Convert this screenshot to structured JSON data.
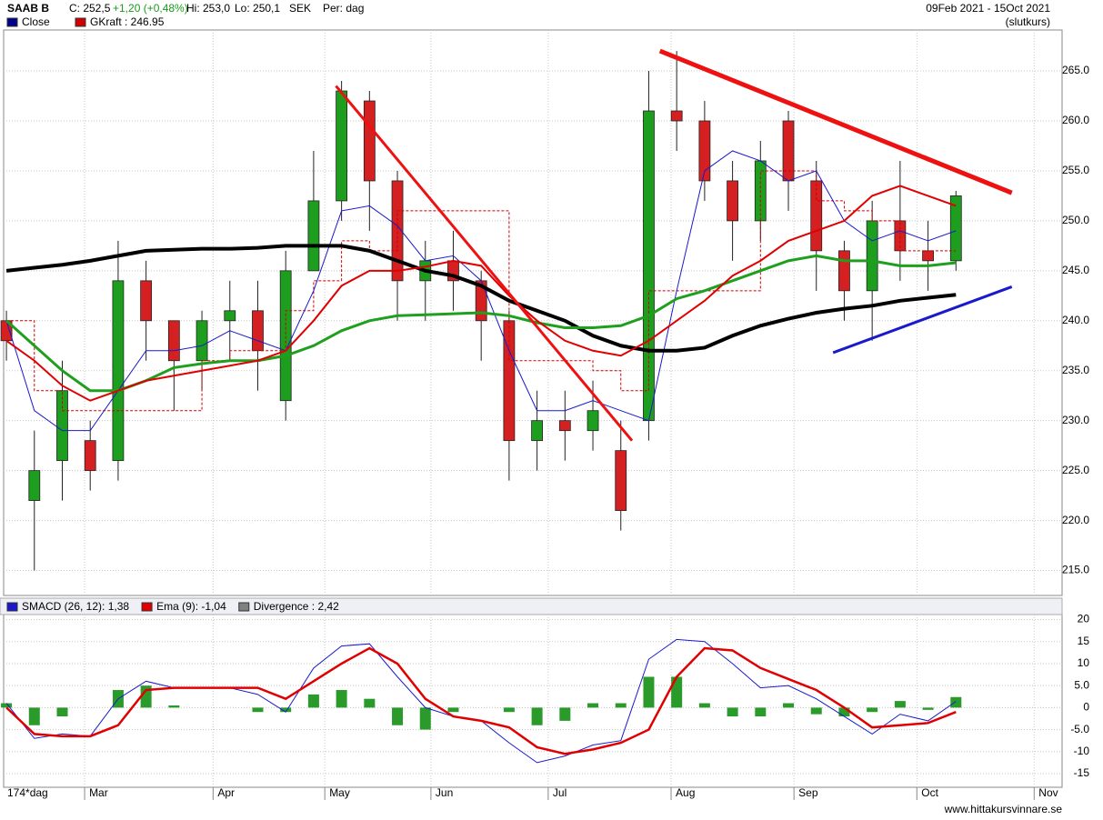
{
  "header": {
    "ticker": "SAAB B",
    "close": "C: 252,5",
    "change": "+1,20 (+0,48%)",
    "high": "Hi: 253,0",
    "low": "Lo: 250,1",
    "currency": "SEK",
    "period": "Per: dag",
    "range": "09Feb 2021 - 15Oct 2021",
    "mode": "(slutkurs)",
    "legend": [
      {
        "label": "Close",
        "color": "#00008b"
      },
      {
        "label": "GKraft : 246.95",
        "color": "#d00000"
      }
    ],
    "days": "174*dag",
    "footer": "www.hittakursvinnare.se"
  },
  "chart_data": [
    {
      "type": "candlestick",
      "x": [
        0,
        5,
        10,
        15,
        20,
        25,
        30,
        35,
        40,
        45,
        50,
        55,
        60,
        65,
        70,
        75,
        80,
        85,
        90,
        95,
        100,
        105,
        110,
        115,
        120,
        125,
        130,
        135,
        140,
        145,
        150,
        155,
        160,
        165,
        170
      ],
      "open": [
        240,
        222,
        226,
        228,
        226,
        244,
        240,
        236,
        240,
        241,
        232,
        245,
        252,
        262,
        254,
        244,
        246,
        244,
        240,
        228,
        230,
        229,
        227,
        230,
        261,
        260,
        254,
        250,
        260,
        254,
        247,
        243,
        250,
        247,
        246
      ],
      "high": [
        241,
        229,
        236,
        230,
        248,
        246,
        240,
        241,
        244,
        244,
        247,
        257,
        264,
        263,
        255,
        248,
        249,
        245,
        241,
        233,
        233,
        234,
        230,
        265,
        267,
        262,
        256,
        258,
        261,
        256,
        248,
        252,
        256,
        250,
        253
      ],
      "low": [
        236,
        215,
        222,
        223,
        224,
        236,
        231,
        233,
        236,
        233,
        230,
        245,
        250,
        249,
        240,
        240,
        241,
        236,
        224,
        225,
        226,
        227,
        219,
        228,
        257,
        252,
        246,
        248,
        251,
        243,
        240,
        238,
        244,
        243,
        245
      ],
      "close": [
        238,
        225,
        233,
        225,
        244,
        240,
        236,
        240,
        241,
        237,
        245,
        252,
        263,
        254,
        244,
        246,
        244,
        240,
        228,
        230,
        229,
        231,
        221,
        261,
        260,
        254,
        250,
        256,
        254,
        247,
        243,
        250,
        247,
        246,
        252.5
      ],
      "up_color": "#1e9e1e",
      "down_color": "#d42020",
      "series": [
        {
          "color": "#d00000",
          "width": 1,
          "dash": true,
          "step": true,
          "values": [
            240,
            233,
            231,
            231,
            231,
            231,
            231,
            236,
            237,
            237,
            241,
            244,
            248,
            247,
            251,
            251,
            251,
            251,
            236,
            236,
            236,
            235,
            233,
            243,
            243,
            243,
            243,
            255,
            255,
            252,
            251,
            250,
            247,
            247,
            247
          ]
        },
        {
          "color": "#1a1acc",
          "width": 1,
          "values": [
            240,
            231,
            229,
            229,
            233,
            237,
            237,
            237.5,
            239,
            238,
            237,
            243,
            251,
            251.5,
            249.5,
            246,
            246.5,
            244,
            237,
            231,
            231,
            232,
            231,
            230,
            243,
            255,
            257,
            256,
            254,
            255,
            250,
            248,
            249,
            248,
            249
          ]
        },
        {
          "color": "#000000",
          "width": 4,
          "values": [
            245,
            245.3,
            245.6,
            246,
            246.5,
            247,
            247.1,
            247.2,
            247.2,
            247.3,
            247.5,
            247.5,
            247.5,
            247,
            246,
            245,
            244.5,
            243.5,
            242,
            241,
            240,
            238.5,
            237.5,
            237,
            237,
            237.3,
            238.5,
            239.5,
            240.2,
            240.8,
            241.2,
            241.5,
            242,
            242.3,
            242.6
          ]
        },
        {
          "color": "#1ea01e",
          "width": 3,
          "values": [
            240,
            237.5,
            235,
            233,
            233,
            234,
            235.3,
            235.7,
            236,
            236,
            236.5,
            237.5,
            239,
            240,
            240.5,
            240.6,
            240.7,
            240.8,
            240.5,
            239.8,
            239.3,
            239.3,
            239.5,
            240.5,
            242.2,
            243,
            244,
            245,
            246,
            246.5,
            246,
            246,
            245.5,
            245.5,
            245.8
          ]
        },
        {
          "color": "#e00000",
          "width": 2,
          "values": [
            238,
            236,
            233.5,
            232,
            233,
            234,
            234.5,
            235,
            235.5,
            236,
            237,
            240,
            243.5,
            245,
            245,
            245.4,
            246,
            245.5,
            242.5,
            240,
            238,
            237,
            236.5,
            238,
            240,
            242,
            244.5,
            246,
            248,
            249,
            250,
            252.5,
            253.5,
            252.5,
            251.5
          ]
        }
      ],
      "trendlines": [
        {
          "color": "#ee1111",
          "width": 3,
          "x": [
            59,
            112
          ],
          "y": [
            263.5,
            228
          ]
        },
        {
          "color": "#ee1111",
          "width": 5,
          "x": [
            117,
            180
          ],
          "y": [
            267,
            252.8
          ]
        },
        {
          "color": "#1a1acc",
          "width": 3,
          "x": [
            148,
            180
          ],
          "y": [
            236.8,
            243.4
          ]
        }
      ],
      "xlim": [
        -0.5,
        189
      ],
      "ylim": [
        212.5,
        269.1
      ],
      "yticks": [
        {
          "value": 215,
          "label": "215.0"
        },
        {
          "value": 220,
          "label": "220.0"
        },
        {
          "value": 225,
          "label": "225.0"
        },
        {
          "value": 230,
          "label": "230.0"
        },
        {
          "value": 235,
          "label": "235.0"
        },
        {
          "value": 240,
          "label": "240.0"
        },
        {
          "value": 245,
          "label": "245.0"
        },
        {
          "value": 250,
          "label": "250.0"
        },
        {
          "value": 255,
          "label": "255.0"
        },
        {
          "value": 260,
          "label": "260.0"
        },
        {
          "value": 265,
          "label": "265.0"
        }
      ],
      "xticks": [
        {
          "value": 14,
          "label": "Mar"
        },
        {
          "value": 37,
          "label": "Apr"
        },
        {
          "value": 57,
          "label": "May"
        },
        {
          "value": 76,
          "label": "Jun"
        },
        {
          "value": 97,
          "label": "Jul"
        },
        {
          "value": 119,
          "label": "Aug"
        },
        {
          "value": 141,
          "label": "Sep"
        },
        {
          "value": 163,
          "label": "Oct"
        },
        {
          "value": 184,
          "label": "Nov"
        }
      ],
      "grid": true
    },
    {
      "type": "macd",
      "series": [
        {
          "name": "SMACD (26, 12): 1,38",
          "color": "#1a1acc",
          "width": 1,
          "values": [
            1,
            -7,
            -6,
            -6.5,
            2,
            6,
            4.5,
            4.5,
            4.5,
            3,
            -1,
            9,
            14,
            14.5,
            7,
            0,
            -2,
            -3,
            -8,
            -12.5,
            -11,
            -8.5,
            -7.5,
            11,
            15.5,
            15,
            10,
            4.5,
            5,
            2,
            -2,
            -6,
            -1.5,
            -3,
            1.4
          ]
        },
        {
          "name": "Ema (9): -1,04",
          "color": "#e00000",
          "width": 2.5,
          "values": [
            0,
            -6,
            -6.5,
            -6.5,
            -4,
            4,
            4.5,
            4.5,
            4.5,
            4.5,
            2,
            6,
            10,
            13.5,
            10,
            2,
            -2,
            -3,
            -4.5,
            -9,
            -10.5,
            -9.5,
            -8,
            -5,
            7,
            13.5,
            13,
            9,
            6.5,
            4,
            0,
            -4.5,
            -4,
            -3.5,
            -1
          ]
        }
      ],
      "divergence": {
        "name": "Divergence : 2,42",
        "color": "#808080",
        "bar_color": "#2a9a2a",
        "values": [
          1,
          -4,
          -2,
          0,
          4,
          5,
          0.5,
          0,
          0,
          -1,
          -1,
          3,
          4,
          2,
          -4,
          -5,
          -1,
          0,
          -1,
          -4,
          -3,
          1,
          1,
          7,
          7,
          1,
          -2,
          -2,
          1,
          -1.5,
          -2,
          -1,
          1.5,
          -0.5,
          2.4
        ]
      },
      "ylim": [
        -18.1,
        21.15
      ],
      "yticks": [
        -15,
        {
          "value": -10,
          "label": "-10"
        },
        {
          "value": -5,
          "label": "-5.0"
        },
        0,
        {
          "value": 5,
          "label": "5.0"
        },
        10,
        15,
        20
      ],
      "grid": true
    }
  ]
}
